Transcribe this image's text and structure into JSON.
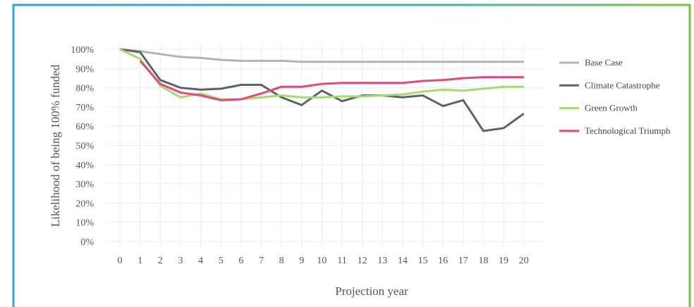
{
  "chart_data": {
    "type": "line",
    "xlabel": "Projection year",
    "ylabel": "Likelihood of being 100% funded",
    "x": [
      0,
      1,
      2,
      3,
      4,
      5,
      6,
      7,
      8,
      9,
      10,
      11,
      12,
      13,
      14,
      15,
      16,
      17,
      18,
      19,
      20
    ],
    "series": [
      {
        "name": "Base Case",
        "color": "#b3b3b3",
        "values": [
          100,
          99,
          97.5,
          96,
          95.5,
          94.5,
          94,
          94,
          94,
          93.5,
          93.5,
          93.5,
          93.5,
          93.5,
          93.5,
          93.5,
          93.5,
          93.5,
          93.5,
          93.5,
          93.5
        ]
      },
      {
        "name": "Climate Catastrophe",
        "color": "#5c6469",
        "values": [
          100,
          98.5,
          84,
          80,
          79,
          79.5,
          81.5,
          81.5,
          75,
          71,
          78.5,
          73,
          76,
          76,
          75,
          76,
          70.5,
          73.5,
          57.5,
          59,
          66.5
        ]
      },
      {
        "name": "Green Growth",
        "color": "#a5dc6a",
        "values": [
          100,
          95,
          81,
          75,
          77,
          74,
          74,
          75,
          76,
          75,
          75,
          75.5,
          75.5,
          76,
          76.5,
          78,
          79,
          78.5,
          79.5,
          80.5,
          80.5
        ]
      },
      {
        "name": "Technological Triumph",
        "color": "#e8467c",
        "values": [
          null,
          94,
          82,
          77.5,
          76,
          73.5,
          74,
          77,
          80.5,
          80.5,
          82,
          82.5,
          82.5,
          82.5,
          82.5,
          83.5,
          84,
          85,
          85.5,
          85.5,
          85.5
        ]
      }
    ],
    "xlim": [
      -0.7,
      20.5
    ],
    "xticks": [
      0,
      1,
      2,
      3,
      4,
      5,
      6,
      7,
      8,
      9,
      10,
      11,
      12,
      13,
      14,
      15,
      16,
      17,
      18,
      19,
      20
    ],
    "ylim": [
      0,
      100
    ],
    "yticks": [
      {
        "value": 0,
        "label": "0%"
      },
      {
        "value": 10,
        "label": "10%"
      },
      {
        "value": 20,
        "label": "20%"
      },
      {
        "value": 30,
        "label": "30%"
      },
      {
        "value": 40,
        "label": "40%"
      },
      {
        "value": 50,
        "label": "50%"
      },
      {
        "value": 60,
        "label": "60%"
      },
      {
        "value": 70,
        "label": "70%"
      },
      {
        "value": 80,
        "label": "80%"
      },
      {
        "value": 90,
        "label": "90%"
      },
      {
        "value": 100,
        "label": "100%"
      }
    ],
    "grid": true,
    "legend": "right"
  }
}
